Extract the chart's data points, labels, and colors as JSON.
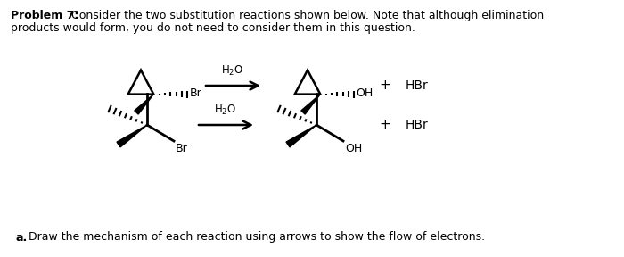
{
  "background_color": "#ffffff",
  "title_bold": "Problem 7:",
  "title_normal": " Consider the two substitution reactions shown below. Note that although elimination",
  "title_line2": "products would form, you do not need to consider them in this question.",
  "footer_a": "a.",
  "footer_text": "  Draw the mechanism of each reaction using arrows to show the flow of electrons.",
  "text_color": "#000000"
}
